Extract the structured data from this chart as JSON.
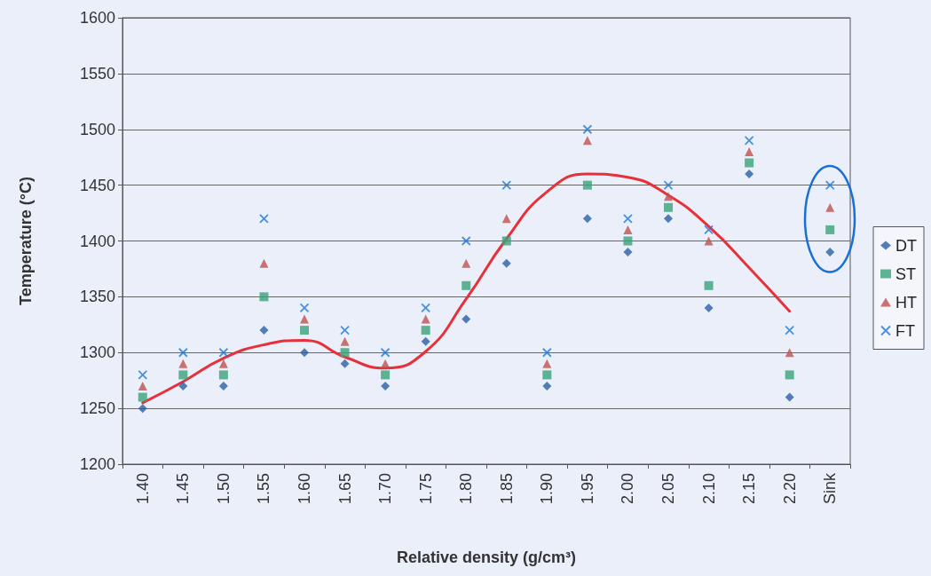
{
  "chart_data": {
    "type": "scatter",
    "xlabel": "Relative density (g/cm³)",
    "ylabel": "Temperature (°C)",
    "categories": [
      "1.40",
      "1.45",
      "1.50",
      "1.55",
      "1.60",
      "1.65",
      "1.70",
      "1.75",
      "1.80",
      "1.85",
      "1.90",
      "1.95",
      "2.00",
      "2.05",
      "2.10",
      "2.15",
      "2.20",
      "Sink"
    ],
    "series": [
      {
        "name": "DT",
        "color": "#2a5fa5",
        "marker": "diamond",
        "values": [
          1250,
          1270,
          1270,
          1320,
          1300,
          1290,
          1270,
          1310,
          1330,
          1380,
          1270,
          1420,
          1390,
          1420,
          1340,
          1460,
          1260,
          1390
        ]
      },
      {
        "name": "ST",
        "color": "#3aa37a",
        "marker": "square",
        "values": [
          1260,
          1280,
          1280,
          1350,
          1320,
          1300,
          1280,
          1320,
          1360,
          1400,
          1280,
          1450,
          1400,
          1430,
          1360,
          1470,
          1280,
          1410
        ]
      },
      {
        "name": "HT",
        "color": "#c0504d",
        "marker": "triangle",
        "values": [
          1270,
          1290,
          1290,
          1380,
          1330,
          1310,
          1290,
          1330,
          1380,
          1420,
          1290,
          1490,
          1410,
          1440,
          1400,
          1480,
          1300,
          1430
        ]
      },
      {
        "name": "FT",
        "color": "#1e78d8",
        "marker": "cross",
        "values": [
          1280,
          1300,
          1300,
          1420,
          1340,
          1320,
          1300,
          1340,
          1400,
          1450,
          1300,
          1500,
          1420,
          1450,
          1410,
          1490,
          1320,
          1450
        ]
      },
      {
        "type": "line",
        "color": "#e8303a",
        "marker": "none",
        "line_style": "solid",
        "values": [
          1255,
          1274,
          1295,
          1307,
          1311,
          1296,
          1286,
          1301,
          1348,
          1402,
          1444,
          1460,
          1457,
          1441,
          1413,
          1376,
          1337,
          null
        ]
      }
    ],
    "ylim": [
      1200,
      1600
    ],
    "yticks": [
      1200,
      1250,
      1300,
      1350,
      1400,
      1450,
      1500,
      1550,
      1600
    ],
    "grid": "y",
    "legend": "right"
  }
}
